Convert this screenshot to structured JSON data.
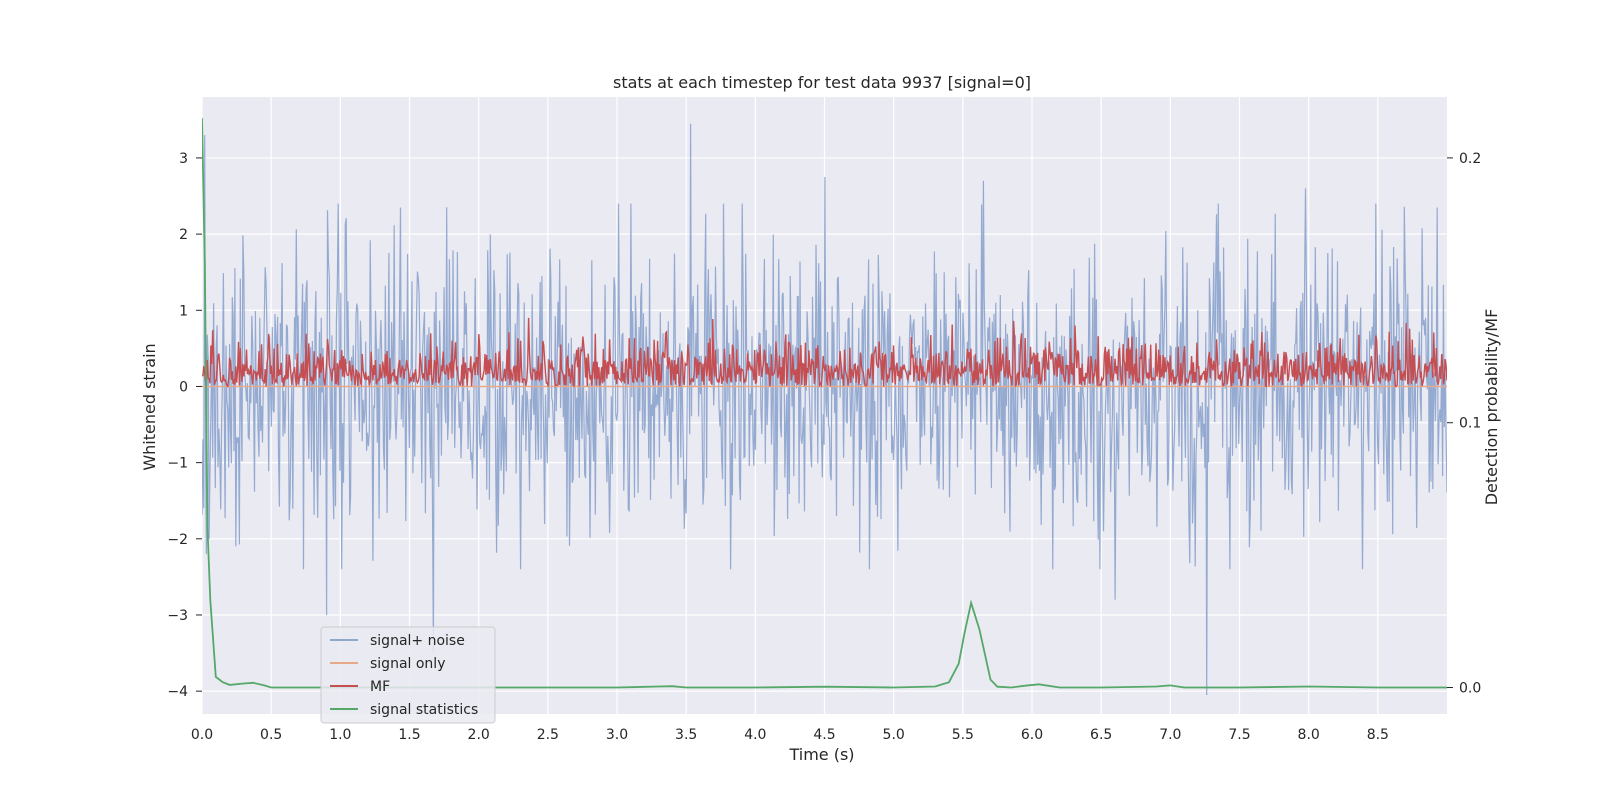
{
  "chart_data": {
    "type": "line",
    "title": "stats at each timestep for test data 9937 [signal=0]",
    "xlabel": "Time (s)",
    "ylabel": "Whitened strain",
    "y2label": "Detection probability/MF",
    "xlim": [
      0,
      9.0
    ],
    "ylim": [
      -4.3,
      3.8
    ],
    "y2lim": [
      -0.01,
      0.223
    ],
    "xticks": [
      0.0,
      0.5,
      1.0,
      1.5,
      2.0,
      2.5,
      3.0,
      3.5,
      4.0,
      4.5,
      5.0,
      5.5,
      6.0,
      6.5,
      7.0,
      7.5,
      8.0,
      8.5
    ],
    "xtick_labels": [
      "0.0",
      "0.5",
      "1.0",
      "1.5",
      "2.0",
      "2.5",
      "3.0",
      "3.5",
      "4.0",
      "4.5",
      "5.0",
      "5.5",
      "6.0",
      "6.5",
      "7.0",
      "7.5",
      "8.0",
      "8.5"
    ],
    "yticks": [
      -4,
      -3,
      -2,
      -1,
      0,
      1,
      2,
      3
    ],
    "ytick_labels": [
      "−4",
      "−3",
      "−2",
      "−1",
      "0",
      "1",
      "2",
      "3"
    ],
    "y2ticks": [
      0.0,
      0.1,
      0.2
    ],
    "y2tick_labels": [
      "0.0",
      "0.1",
      "0.2"
    ],
    "grid": true,
    "legend_position": "lower-left",
    "series": [
      {
        "name": "signal+ noise",
        "color": "#8fa6cf",
        "axis": "left",
        "description": "whitened noise, about 2.5 s to 1.0 s amplitude band around 0",
        "noise": {
          "n": 1400,
          "sigma": 0.95,
          "seed": 9937
        },
        "spikes": [
          [
            0.02,
            3.3
          ],
          [
            0.03,
            -2.2
          ],
          [
            0.05,
            -2.0
          ],
          [
            0.9,
            -3.0
          ],
          [
            1.67,
            -3.5
          ],
          [
            3.53,
            3.45
          ],
          [
            4.5,
            2.75
          ],
          [
            5.65,
            2.7
          ],
          [
            6.6,
            -2.8
          ],
          [
            7.26,
            -4.05
          ],
          [
            7.98,
            2.6
          ],
          [
            8.93,
            2.35
          ]
        ]
      },
      {
        "name": "signal only",
        "color": "#e8a98a",
        "axis": "left",
        "x": [
          0,
          9.0
        ],
        "values": [
          0,
          0
        ]
      },
      {
        "name": "MF",
        "color": "#c44e52",
        "axis": "left",
        "description": "matched filter output, about 0 to 0.9",
        "noise": {
          "n": 1400,
          "base": 0.0,
          "scale": 0.28,
          "seed": 4242
        }
      },
      {
        "name": "signal statistics",
        "color": "#55a868",
        "axis": "right",
        "x": [
          0.0,
          0.02,
          0.04,
          0.06,
          0.1,
          0.15,
          0.2,
          0.3,
          0.37,
          0.45,
          0.5,
          1.0,
          2.0,
          3.0,
          3.3,
          3.4,
          3.5,
          4.0,
          4.5,
          5.0,
          5.3,
          5.4,
          5.47,
          5.51,
          5.56,
          5.62,
          5.7,
          5.75,
          5.85,
          5.95,
          6.05,
          6.2,
          6.5,
          6.9,
          7.0,
          7.1,
          7.5,
          8.0,
          8.5,
          9.0
        ],
        "values": [
          0.215,
          0.16,
          0.06,
          0.033,
          0.004,
          0.002,
          0.001,
          0.0015,
          0.0018,
          0.0008,
          0.0,
          0.0,
          0.0,
          0.0,
          0.0004,
          0.0005,
          0.0,
          0.0,
          0.0003,
          0.0,
          0.0004,
          0.002,
          0.009,
          0.02,
          0.032,
          0.022,
          0.003,
          0.0003,
          0.0,
          0.0007,
          0.0012,
          0.0,
          0.0,
          0.0004,
          0.0008,
          0.0,
          0.0,
          0.0004,
          0.0,
          0.0
        ]
      }
    ]
  }
}
